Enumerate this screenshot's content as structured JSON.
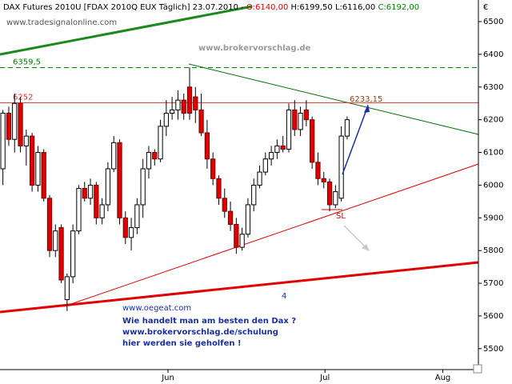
{
  "chart_data": {
    "type": "candlestick",
    "title": "DAX Futures 2010U [FDAX 2010Q EUX  Täglich] 23.07.2010 -",
    "ohlc_labels": [
      "O:6140,00",
      "H:6199,50",
      "L:6116,00",
      "C:6192,00"
    ],
    "source": "www.tradesignalonline.com",
    "watermark": "www.brokervorschlag.de",
    "currency": "€",
    "annotations": {
      "target": "6233,15",
      "stop": "SL",
      "count": "4",
      "promo": [
        "www.oegeat.com",
        "Wie handelt man am besten den Dax ?",
        "www.brokervorschlag.de/schulung",
        "hier werden sie geholfen !"
      ]
    },
    "hlines": [
      {
        "value": 6359.5,
        "label": "6359,5",
        "color": "#008000",
        "dashed": true
      },
      {
        "value": 6252,
        "label": "6252",
        "color": "#e03030",
        "dashed": false
      }
    ],
    "up_color": "#ffffff",
    "down_color": "#e00000",
    "xlim": [
      -0.5,
      81.5
    ],
    "xticks": [
      {
        "value": 28.3,
        "label": "Jun"
      },
      {
        "value": 55.2,
        "label": "Jul"
      },
      {
        "value": 75.4,
        "label": "Aug"
      }
    ],
    "ylim": [
      5436,
      6527
    ],
    "yticks": [
      5500,
      5600,
      5700,
      5800,
      5900,
      6000,
      6100,
      6200,
      6300,
      6400,
      6500
    ],
    "open": [
      6050,
      6220,
      6140,
      6250,
      6120,
      6150,
      6000,
      6100,
      5960,
      5800,
      5870,
      5650,
      5720,
      5860,
      5990,
      5960,
      6000,
      5900,
      5940,
      6050,
      6130,
      5900,
      5840,
      5870,
      5940,
      6050,
      6100,
      6080,
      6180,
      6220,
      6230,
      6260,
      6300,
      6270,
      6230,
      6160,
      6080,
      6020,
      5960,
      5920,
      5880,
      5810,
      5850,
      5940,
      6000,
      6040,
      6080,
      6100,
      6120,
      6110,
      6230,
      6170,
      6230,
      6200,
      6070,
      6020,
      6010,
      5940,
      5960,
      6150
    ],
    "high": [
      6230,
      6240,
      6280,
      6270,
      6170,
      6160,
      6120,
      6110,
      5970,
      5880,
      5880,
      5730,
      5880,
      6000,
      6010,
      6020,
      6010,
      5960,
      6070,
      6150,
      6140,
      5920,
      5900,
      5960,
      6080,
      6120,
      6110,
      6200,
      6260,
      6270,
      6290,
      6280,
      6360,
      6300,
      6280,
      6200,
      6100,
      6030,
      5990,
      5950,
      5900,
      5870,
      5960,
      6020,
      6060,
      6100,
      6120,
      6140,
      6150,
      6250,
      6260,
      6240,
      6260,
      6210,
      6100,
      6040,
      6020,
      6000,
      6180,
      6210
    ],
    "low": [
      6000,
      6120,
      6100,
      6100,
      6060,
      5980,
      5980,
      5950,
      5780,
      5780,
      5700,
      5615,
      5700,
      5850,
      5950,
      5940,
      5880,
      5880,
      5920,
      6040,
      5880,
      5820,
      5800,
      5850,
      5900,
      6020,
      6060,
      6070,
      6150,
      6200,
      6200,
      6200,
      6200,
      6190,
      6150,
      6050,
      6000,
      5940,
      5900,
      5860,
      5790,
      5800,
      5840,
      5920,
      5990,
      6030,
      6060,
      6080,
      6100,
      6100,
      6150,
      6150,
      6180,
      6050,
      6000,
      5990,
      5920,
      5930,
      5950,
      6140
    ],
    "close": [
      6220,
      6140,
      6250,
      6120,
      6150,
      6000,
      6100,
      5960,
      5800,
      5860,
      5710,
      5720,
      5860,
      5990,
      5960,
      6000,
      5900,
      5940,
      6050,
      6130,
      5900,
      5840,
      5870,
      5940,
      6050,
      6100,
      6080,
      6180,
      6220,
      6230,
      6260,
      6220,
      6220,
      6230,
      6160,
      6080,
      6020,
      5960,
      5920,
      5880,
      5810,
      5850,
      5940,
      6000,
      6040,
      6080,
      6100,
      6120,
      6110,
      6230,
      6170,
      6220,
      6200,
      6070,
      6020,
      6010,
      5940,
      5980,
      6150,
      6200
    ]
  }
}
